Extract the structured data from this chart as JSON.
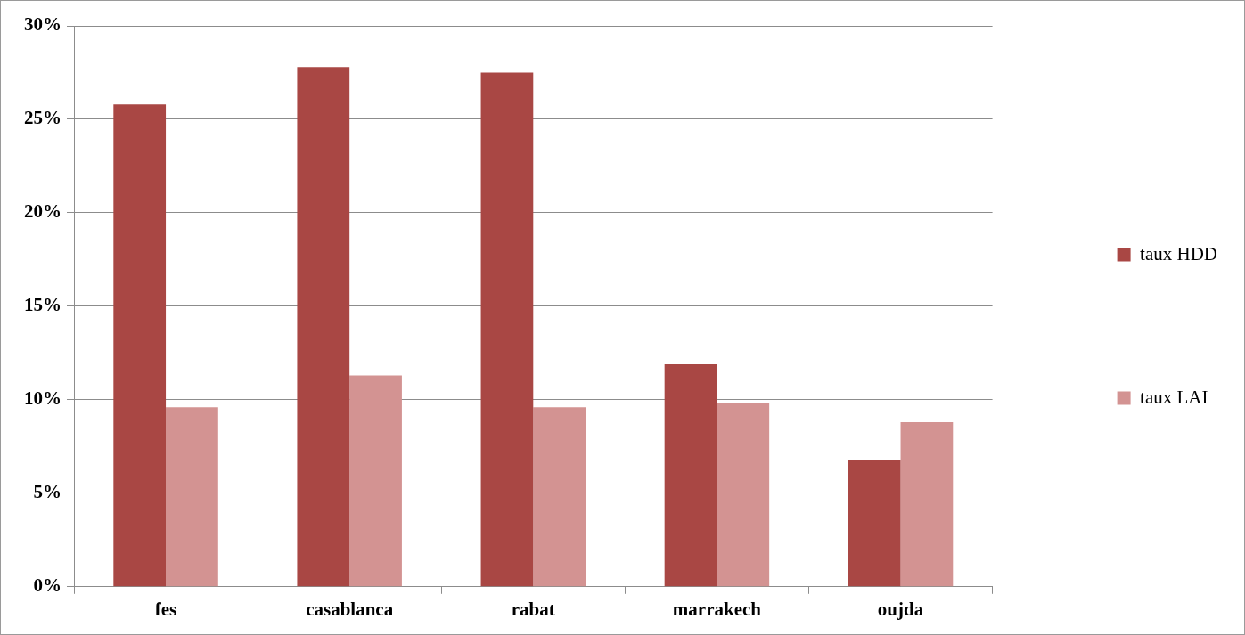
{
  "chart_data": {
    "type": "bar",
    "categories": [
      "fes",
      "casablanca",
      "rabat",
      "marrakech",
      "oujda"
    ],
    "series": [
      {
        "name": "taux HDD",
        "color": "#a94744",
        "values": [
          25.8,
          27.8,
          27.5,
          11.9,
          6.8
        ]
      },
      {
        "name": "taux LAI",
        "color": "#d39392",
        "values": [
          9.6,
          11.3,
          9.6,
          9.8,
          8.8
        ]
      }
    ],
    "ylim": [
      0,
      30
    ],
    "yticks": [
      {
        "value": 0,
        "label": "0%"
      },
      {
        "value": 5,
        "label": "5%"
      },
      {
        "value": 10,
        "label": "10%"
      },
      {
        "value": 15,
        "label": "15%"
      },
      {
        "value": 20,
        "label": "20%"
      },
      {
        "value": 25,
        "label": "25%"
      },
      {
        "value": 30,
        "label": "30%"
      }
    ],
    "grid": "y",
    "legend": "right"
  }
}
